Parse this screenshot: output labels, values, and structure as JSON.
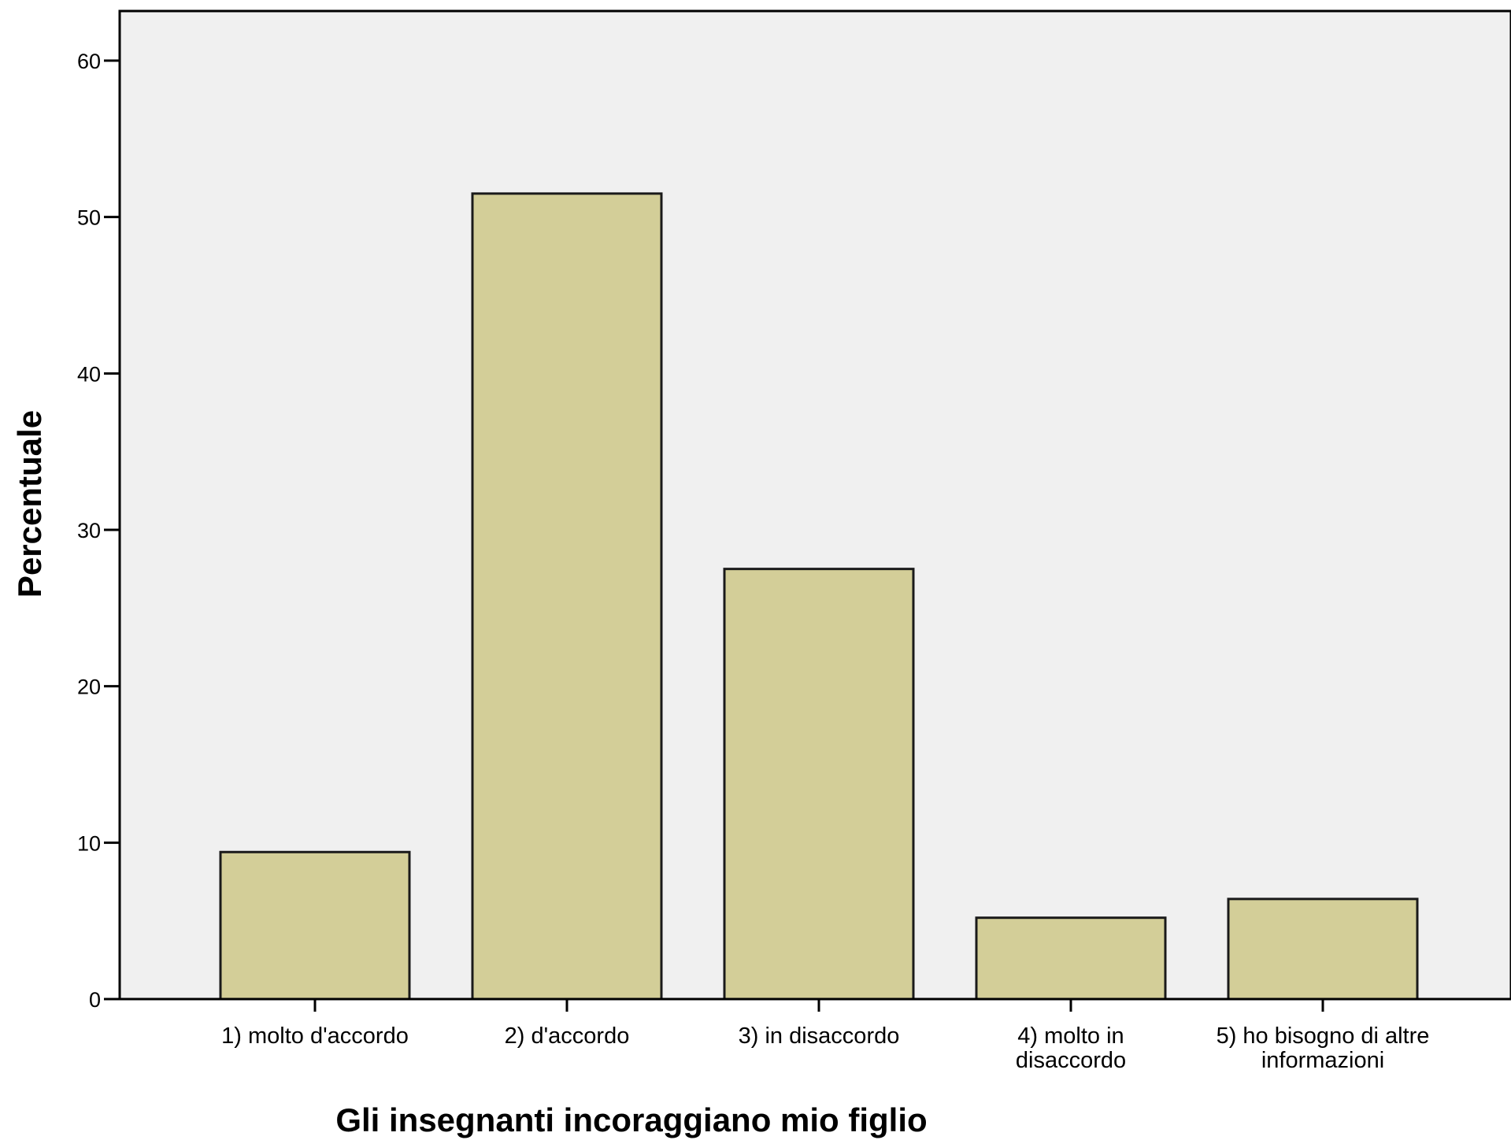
{
  "chart_data": {
    "type": "bar",
    "categories": [
      [
        "1) molto d'accordo"
      ],
      [
        "2) d'accordo"
      ],
      [
        "3) in disaccordo"
      ],
      [
        "4) molto in",
        "disaccordo"
      ],
      [
        "5) ho bisogno di altre",
        "informazioni"
      ]
    ],
    "values": [
      9.4,
      51.5,
      27.5,
      5.2,
      6.4
    ],
    "xlabel": "Gli insegnanti incoraggiano mio figlio",
    "ylabel": "Percentuale",
    "ylim": [
      0,
      60
    ],
    "yticks": [
      0,
      10,
      20,
      30,
      40,
      50,
      60
    ],
    "grid": false,
    "colors": {
      "plot_background": "#f0f0f0",
      "bar_fill": "#d3ce98",
      "bar_stroke": "#1a1a1a",
      "axis": "#000000"
    }
  }
}
